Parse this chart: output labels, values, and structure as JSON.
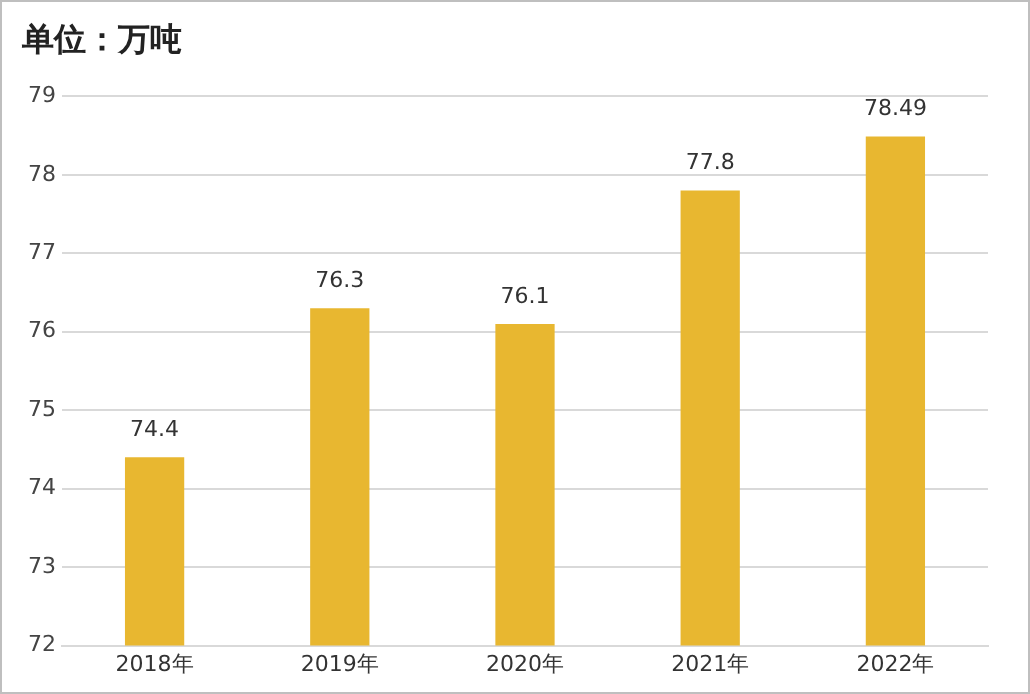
{
  "chart_data": {
    "type": "bar",
    "title": "单位：万吨",
    "categories": [
      "2018年",
      "2019年",
      "2020年",
      "2021年",
      "2022年"
    ],
    "values": [
      74.4,
      76.3,
      76.1,
      77.8,
      78.49
    ],
    "color": "#e8b730",
    "ylim": [
      72,
      79
    ],
    "yticks": [
      72,
      73,
      74,
      75,
      76,
      77,
      78,
      79
    ],
    "grid": "y",
    "legend": false,
    "data_labels": true
  }
}
